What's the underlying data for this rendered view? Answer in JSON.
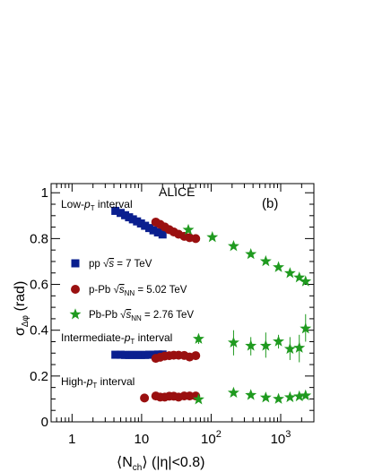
{
  "chart_data": {
    "type": "scatter",
    "title": "ALICE",
    "panel_label": "(b)",
    "xlabel": "⟨N_ch⟩ (|η|<0.8)",
    "ylabel": "σ_Δφ (rad)",
    "x_scale": "log",
    "xlim": [
      0.5,
      3000
    ],
    "ylim": [
      0,
      1.04
    ],
    "x_tick_labels": [
      "1",
      "10",
      "10²",
      "10³"
    ],
    "y_tick_labels": [
      "0",
      "0.2",
      "0.4",
      "0.6",
      "0.8",
      "1"
    ],
    "grid": false,
    "legend_position": "middle-left",
    "annotations": {
      "low": "Low-p_T interval",
      "intermediate": "Intermediate-p_T interval",
      "high": "High-p_T interval"
    },
    "legend": {
      "pp": {
        "pre": "pp ",
        "rad": "s",
        "post": " = 7 TeV"
      },
      "ppb": {
        "pre": "p-Pb ",
        "rad": "s_NN",
        "post": " = 5.02 TeV"
      },
      "pbpb": {
        "pre": "Pb-Pb ",
        "rad": "s_NN",
        "post": " = 2.76 TeV"
      }
    },
    "series": [
      {
        "name": "pp √s = 7 TeV",
        "marker": "square",
        "color": "#0a1f8f",
        "low": [
          [
            4.2,
            0.921
          ],
          [
            5.0,
            0.912
          ],
          [
            5.8,
            0.902
          ],
          [
            6.6,
            0.893
          ],
          [
            7.5,
            0.884
          ],
          [
            8.6,
            0.875
          ],
          [
            9.8,
            0.866
          ],
          [
            11.2,
            0.856
          ],
          [
            12.9,
            0.846
          ],
          [
            14.8,
            0.836
          ],
          [
            17.2,
            0.827
          ],
          [
            20.0,
            0.818
          ]
        ],
        "intermediate": [
          [
            4.2,
            0.293
          ],
          [
            5.0,
            0.293
          ],
          [
            5.8,
            0.292
          ],
          [
            6.6,
            0.292
          ],
          [
            7.5,
            0.292
          ],
          [
            8.6,
            0.292
          ],
          [
            9.8,
            0.292
          ],
          [
            11.2,
            0.292
          ],
          [
            12.9,
            0.293
          ],
          [
            14.8,
            0.293
          ],
          [
            17.2,
            0.294
          ],
          [
            20.0,
            0.294
          ]
        ]
      },
      {
        "name": "p-Pb √s_NN = 5.02 TeV",
        "marker": "circle",
        "color": "#9a1010",
        "low": [
          [
            16.0,
            0.872
          ],
          [
            18.5,
            0.862
          ],
          [
            21.5,
            0.851
          ],
          [
            25.0,
            0.839
          ],
          [
            29.0,
            0.829
          ],
          [
            34.0,
            0.819
          ],
          [
            41.0,
            0.81
          ],
          [
            49.0,
            0.804
          ],
          [
            60.0,
            0.8
          ]
        ],
        "intermediate": [
          [
            16.0,
            0.277
          ],
          [
            18.5,
            0.282
          ],
          [
            21.5,
            0.287
          ],
          [
            25.0,
            0.289
          ],
          [
            29.0,
            0.291
          ],
          [
            34.0,
            0.291
          ],
          [
            41.0,
            0.29
          ],
          [
            49.0,
            0.283
          ],
          [
            60.0,
            0.289
          ]
        ],
        "high": [
          [
            11.0,
            0.104
          ],
          [
            16.0,
            0.113
          ],
          [
            18.5,
            0.108
          ],
          [
            21.5,
            0.108
          ],
          [
            25.0,
            0.112
          ],
          [
            29.0,
            0.112
          ],
          [
            34.0,
            0.108
          ],
          [
            41.0,
            0.113
          ],
          [
            49.0,
            0.113
          ],
          [
            60.0,
            0.113
          ]
        ]
      },
      {
        "name": "Pb-Pb √s_NN = 2.76 TeV",
        "marker": "star",
        "color": "#1f9a1f",
        "low": [
          [
            47,
            0.838
          ],
          [
            104,
            0.806
          ],
          [
            210,
            0.767
          ],
          [
            372,
            0.732
          ],
          [
            610,
            0.701
          ],
          [
            930,
            0.675
          ],
          [
            1360,
            0.649
          ],
          [
            1850,
            0.63
          ],
          [
            2280,
            0.613
          ]
        ],
        "intermediate": [
          [
            66,
            0.362
          ],
          [
            210,
            0.346
          ],
          [
            372,
            0.332
          ],
          [
            610,
            0.332
          ],
          [
            930,
            0.351
          ],
          [
            1360,
            0.318
          ],
          [
            1850,
            0.323
          ],
          [
            2280,
            0.407
          ]
        ],
        "intermediate_err": [
          [
            0.34,
            0.38
          ],
          [
            0.29,
            0.4
          ],
          [
            0.29,
            0.37
          ],
          [
            0.28,
            0.39
          ],
          [
            0.32,
            0.38
          ],
          [
            0.27,
            0.37
          ],
          [
            0.26,
            0.38
          ],
          [
            0.35,
            0.47
          ]
        ],
        "high": [
          [
            66,
            0.098
          ],
          [
            210,
            0.127
          ],
          [
            372,
            0.117
          ],
          [
            610,
            0.106
          ],
          [
            930,
            0.1
          ],
          [
            1360,
            0.107
          ],
          [
            1850,
            0.111
          ],
          [
            2280,
            0.115
          ]
        ]
      }
    ]
  }
}
